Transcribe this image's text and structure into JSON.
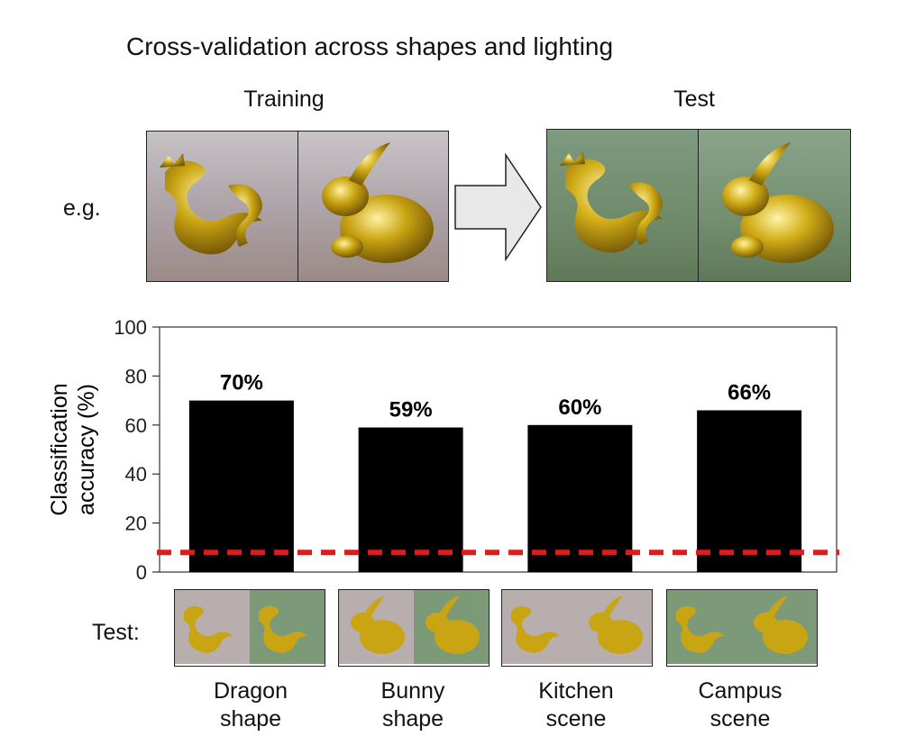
{
  "header": {
    "title": "Cross-validation across shapes and lighting",
    "training_label": "Training",
    "test_label": "Test",
    "example_label": "e.g."
  },
  "panels": {
    "training": [
      "dragon-gold-indoor",
      "bunny-gold-indoor"
    ],
    "test": [
      "dragon-gold-outdoor",
      "bunny-gold-outdoor"
    ],
    "arrow_icon": "right-arrow-icon"
  },
  "colors": {
    "bar": "#000000",
    "chance_line": "#e01b1b",
    "indoor_bg": "#b9aeae",
    "outdoor_bg": "#7c9a78",
    "gold": "#c9a413"
  },
  "chart_data": {
    "type": "bar",
    "categories": [
      "Dragon shape",
      "Bunny shape",
      "Kitchen scene",
      "Campus scene"
    ],
    "values": [
      70,
      59,
      60,
      66
    ],
    "data_labels": [
      "70%",
      "59%",
      "60%",
      "66%"
    ],
    "ylabel": "Classification accuracy (%)",
    "ylabel_lines": [
      "Classification",
      "accuracy (%)"
    ],
    "ylim": [
      0,
      100
    ],
    "yticks": [
      0,
      20,
      40,
      60,
      80,
      100
    ],
    "chance_level": 8,
    "grid": false
  },
  "test_row": {
    "label": "Test:",
    "thumbnails": [
      {
        "left": "dragon-indoor",
        "right": "dragon-outdoor"
      },
      {
        "left": "bunny-indoor",
        "right": "bunny-outdoor"
      },
      {
        "left": "dragon-indoor",
        "right": "bunny-indoor"
      },
      {
        "left": "dragon-outdoor",
        "right": "bunny-outdoor"
      }
    ],
    "captions": [
      "Dragon\nshape",
      "Bunny\nshape",
      "Kitchen\nscene",
      "Campus\nscene"
    ]
  }
}
